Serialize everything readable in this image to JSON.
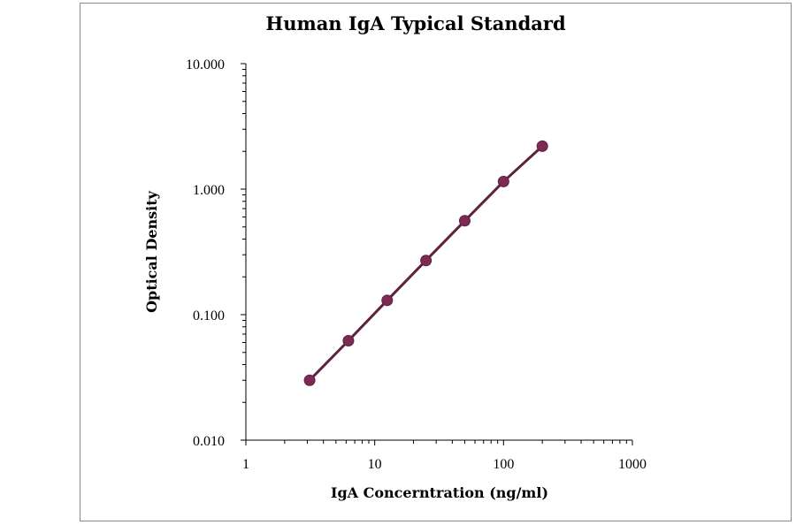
{
  "chart_data": {
    "type": "line",
    "title": "Human IgA Typical Standard",
    "xlabel": "IgA Concerntration (ng/ml)",
    "ylabel": "Optical Density",
    "xscale": "log",
    "yscale": "log",
    "xlim": [
      1,
      1000
    ],
    "ylim": [
      0.01,
      10
    ],
    "x_ticks": [
      {
        "value": 1,
        "label": "1"
      },
      {
        "value": 10,
        "label": "10"
      },
      {
        "value": 100,
        "label": "100"
      },
      {
        "value": 1000,
        "label": "1000"
      }
    ],
    "y_ticks": [
      {
        "value": 0.01,
        "label": "0.010"
      },
      {
        "value": 0.1,
        "label": "0.100"
      },
      {
        "value": 1,
        "label": "1.000"
      },
      {
        "value": 10,
        "label": "10.000"
      }
    ],
    "grid": false,
    "series": [
      {
        "x": [
          3.125,
          6.25,
          12.5,
          25,
          50,
          100,
          200
        ],
        "y": [
          0.03,
          0.062,
          0.13,
          0.27,
          0.56,
          1.15,
          2.2
        ],
        "color": "#7d2a55"
      }
    ]
  }
}
